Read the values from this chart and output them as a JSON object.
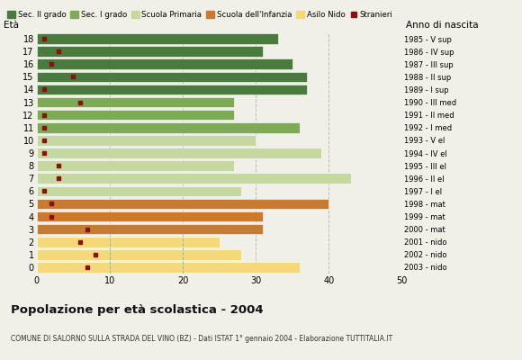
{
  "ages": [
    18,
    17,
    16,
    15,
    14,
    13,
    12,
    11,
    10,
    9,
    8,
    7,
    6,
    5,
    4,
    3,
    2,
    1,
    0
  ],
  "anno_nascita": [
    "1985 - V sup",
    "1986 - IV sup",
    "1987 - III sup",
    "1988 - II sup",
    "1989 - I sup",
    "1990 - III med",
    "1991 - II med",
    "1992 - I med",
    "1993 - V el",
    "1994 - IV el",
    "1995 - III el",
    "1996 - II el",
    "1997 - I el",
    "1998 - mat",
    "1999 - mat",
    "2000 - mat",
    "2001 - nido",
    "2002 - nido",
    "2003 - nido"
  ],
  "bar_values": [
    33,
    31,
    35,
    37,
    37,
    27,
    27,
    36,
    30,
    39,
    27,
    43,
    28,
    40,
    31,
    31,
    25,
    28,
    36
  ],
  "stranieri_values": [
    1,
    3,
    2,
    5,
    1,
    6,
    1,
    1,
    1,
    1,
    3,
    3,
    1,
    2,
    2,
    7,
    6,
    8,
    7
  ],
  "bar_colors": [
    "#4a7a3d",
    "#4a7a3d",
    "#4a7a3d",
    "#4a7a3d",
    "#4a7a3d",
    "#7faa55",
    "#7faa55",
    "#7faa55",
    "#c5d8a0",
    "#c5d8a0",
    "#c5d8a0",
    "#c5d8a0",
    "#c5d8a0",
    "#c87a30",
    "#c87a30",
    "#c87a30",
    "#f5d87a",
    "#f5d87a",
    "#f5d87a"
  ],
  "stranieri_color": "#8b1010",
  "legend_labels": [
    "Sec. II grado",
    "Sec. I grado",
    "Scuola Primaria",
    "Scuola dell'Infanzia",
    "Asilo Nido",
    "Stranieri"
  ],
  "legend_colors": [
    "#4a7a3d",
    "#7faa55",
    "#c5d8a0",
    "#c87a30",
    "#f5d87a",
    "#8b1010"
  ],
  "title": "Popolazione per età scolastica - 2004",
  "subtitle": "COMUNE DI SALORNO SULLA STRADA DEL VINO (BZ) - Dati ISTAT 1° gennaio 2004 - Elaborazione TUTTITALIA.IT",
  "label_eta": "Età",
  "label_anno": "Anno di nascita",
  "xlim": [
    0,
    50
  ],
  "xticks": [
    0,
    10,
    20,
    30,
    40,
    50
  ],
  "background_color": "#f0f0e8",
  "grid_color": "#bbbbbb",
  "dashed_teal_color": "#88b8b8"
}
